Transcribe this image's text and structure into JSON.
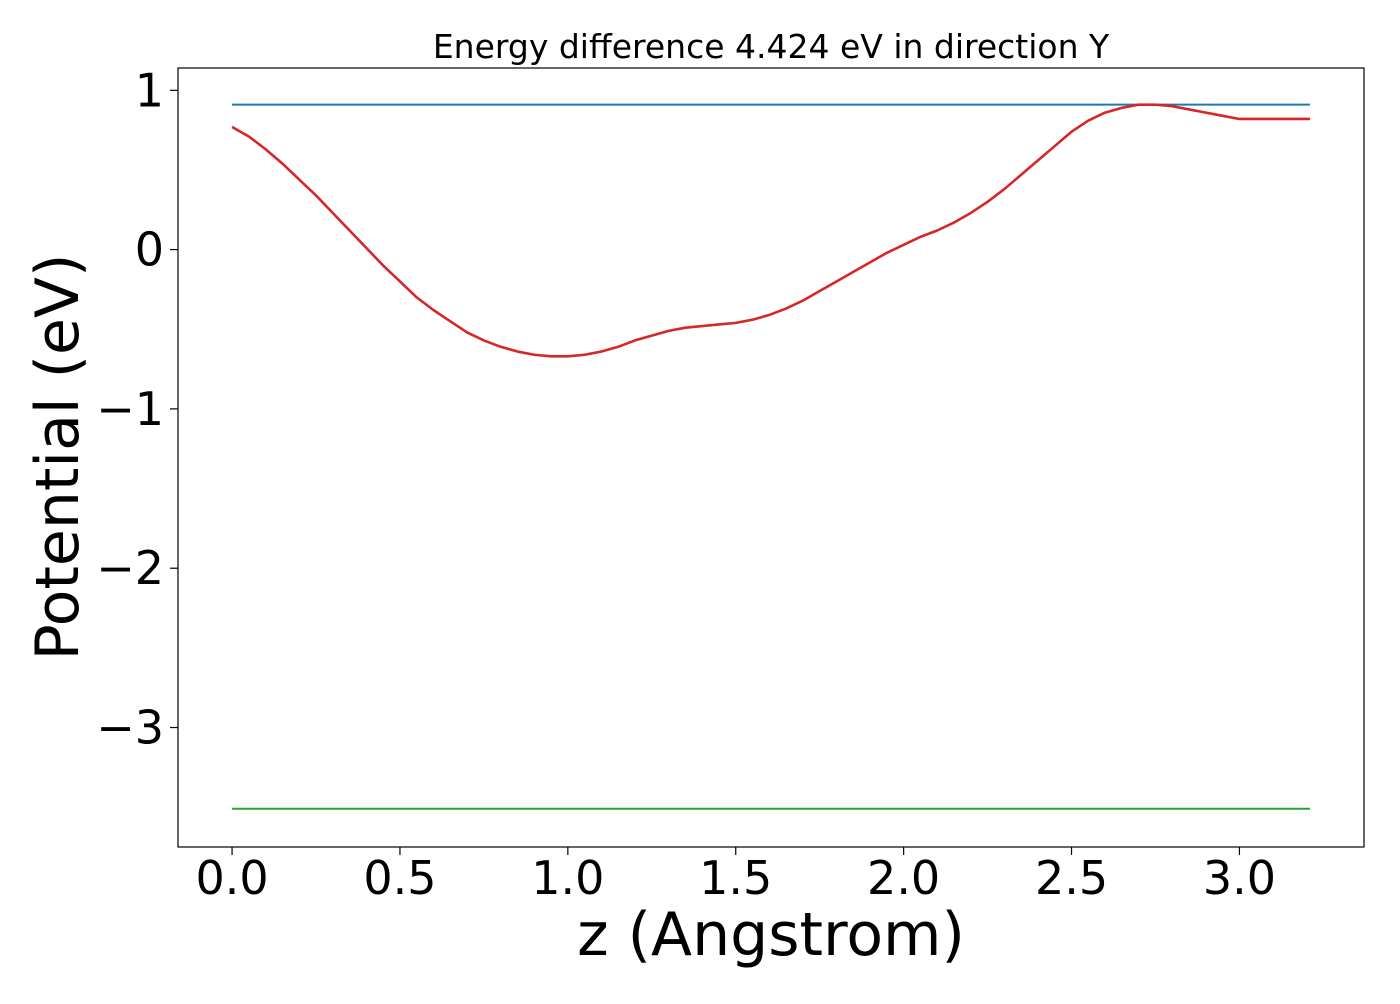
{
  "chart_data": {
    "type": "line",
    "title": "Energy difference 4.424 eV in direction Y",
    "xlabel": "z (Angstrom)",
    "ylabel": "Potential (eV)",
    "xlim": [
      -0.161,
      3.371
    ],
    "ylim": [
      -3.75,
      1.14
    ],
    "xticks": [
      0.0,
      0.5,
      1.0,
      1.5,
      2.0,
      2.5,
      3.0
    ],
    "xtick_labels": [
      "0.0",
      "0.5",
      "1.0",
      "1.5",
      "2.0",
      "2.5",
      "3.0"
    ],
    "yticks": [
      1,
      0,
      -1,
      -2,
      -3
    ],
    "ytick_labels": [
      "1",
      "0",
      "−1",
      "−2",
      "−3"
    ],
    "grid": false,
    "legend": "none",
    "series": [
      {
        "color": "#1f77b4",
        "x": [
          0.0,
          3.21
        ],
        "y": [
          0.91,
          0.91
        ]
      },
      {
        "color": "#2ca02c",
        "x": [
          0.0,
          3.21
        ],
        "y": [
          -3.51,
          -3.51
        ]
      },
      {
        "color": "#d62728",
        "x": [
          0.0,
          0.05,
          0.1,
          0.15,
          0.2,
          0.25,
          0.3,
          0.35,
          0.4,
          0.45,
          0.5,
          0.55,
          0.6,
          0.65,
          0.7,
          0.75,
          0.8,
          0.85,
          0.9,
          0.95,
          1.0,
          1.05,
          1.1,
          1.15,
          1.2,
          1.25,
          1.3,
          1.35,
          1.4,
          1.45,
          1.5,
          1.55,
          1.6,
          1.65,
          1.7,
          1.75,
          1.8,
          1.85,
          1.9,
          1.95,
          2.0,
          2.05,
          2.1,
          2.15,
          2.2,
          2.25,
          2.3,
          2.35,
          2.4,
          2.45,
          2.5,
          2.55,
          2.6,
          2.65,
          2.7,
          2.75,
          2.8,
          2.85,
          2.9,
          2.95,
          3.0,
          3.05,
          3.1,
          3.15,
          3.21
        ],
        "y": [
          0.77,
          0.71,
          0.63,
          0.54,
          0.44,
          0.34,
          0.23,
          0.12,
          0.01,
          -0.1,
          -0.2,
          -0.3,
          -0.38,
          -0.45,
          -0.52,
          -0.57,
          -0.61,
          -0.64,
          -0.66,
          -0.67,
          -0.67,
          -0.66,
          -0.64,
          -0.61,
          -0.57,
          -0.54,
          -0.51,
          -0.49,
          -0.48,
          -0.47,
          -0.46,
          -0.44,
          -0.41,
          -0.37,
          -0.32,
          -0.26,
          -0.2,
          -0.14,
          -0.08,
          -0.02,
          0.03,
          0.08,
          0.12,
          0.17,
          0.23,
          0.3,
          0.38,
          0.47,
          0.56,
          0.65,
          0.74,
          0.81,
          0.86,
          0.89,
          0.91,
          0.91,
          0.9,
          0.88,
          0.86,
          0.84,
          0.82,
          0.82,
          0.82,
          0.82,
          0.82
        ]
      }
    ]
  }
}
